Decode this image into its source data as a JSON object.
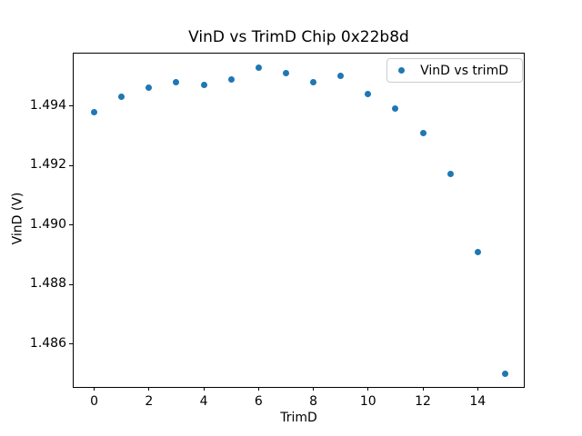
{
  "chart_data": {
    "type": "scatter",
    "title": "VinD vs TrimD Chip 0x22b8d",
    "xlabel": "TrimD",
    "ylabel": "VinD (V)",
    "xlim": [
      -0.75,
      15.75
    ],
    "ylim": [
      1.48449,
      1.49576
    ],
    "xtick_values": [
      0,
      2,
      4,
      6,
      8,
      10,
      12,
      14
    ],
    "xtick_labels": [
      "0",
      "2",
      "4",
      "6",
      "8",
      "10",
      "12",
      "14"
    ],
    "ytick_values": [
      1.486,
      1.488,
      1.49,
      1.492,
      1.494
    ],
    "ytick_labels": [
      "1.486",
      "1.488",
      "1.490",
      "1.492",
      "1.494"
    ],
    "grid": false,
    "legend_position": "upper right",
    "series": [
      {
        "name": "VinD vs trimD",
        "color": "#1f77b4",
        "x": [
          0,
          1,
          2,
          3,
          4,
          5,
          6,
          7,
          8,
          9,
          10,
          11,
          12,
          13,
          14,
          15
        ],
        "y": [
          1.4938,
          1.4943,
          1.4946,
          1.4948,
          1.4947,
          1.4949,
          1.4953,
          1.4951,
          1.4948,
          1.495,
          1.4944,
          1.4939,
          1.4931,
          1.4917,
          1.4891,
          1.485
        ]
      }
    ]
  },
  "colors": {
    "marker_blue": "#1f77b4",
    "background": "#ffffff",
    "spine": "#000000",
    "legend_border": "#cccccc"
  }
}
